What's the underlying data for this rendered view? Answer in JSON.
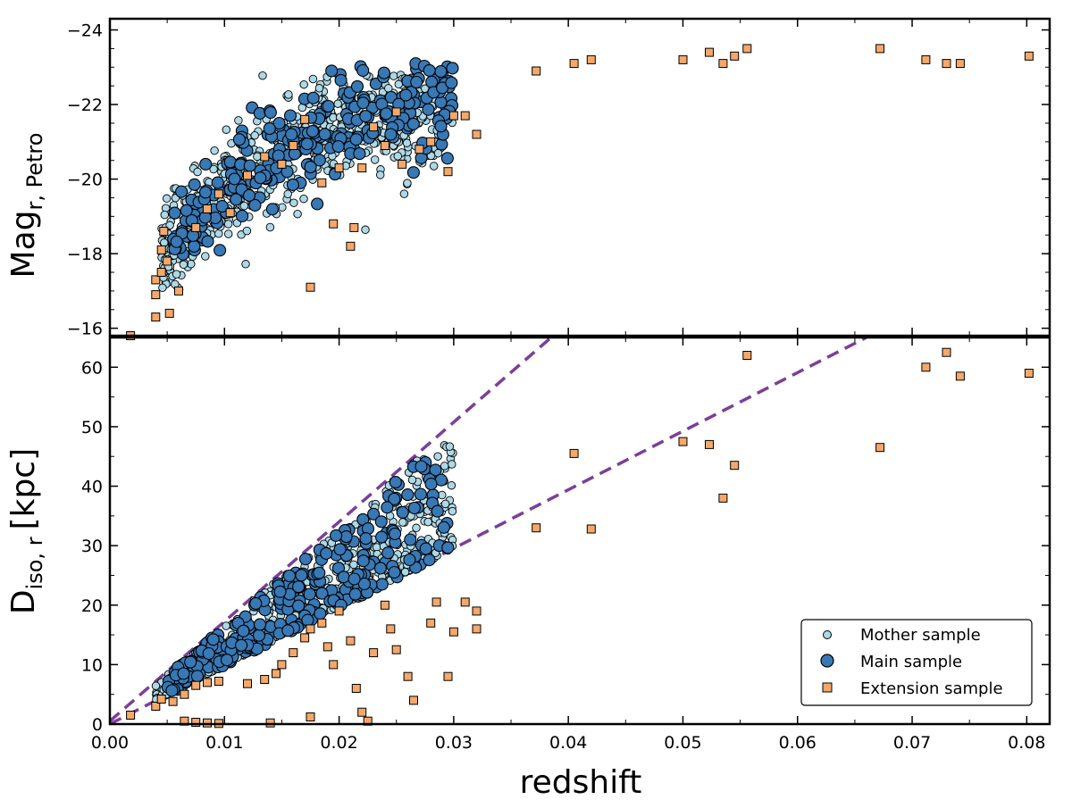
{
  "chart_data": [
    {
      "type": "scatter",
      "panel": "top",
      "ylabel_main": "Mag",
      "ylabel_sub": "r, Petro",
      "xlim": [
        0.0,
        0.082
      ],
      "ylim": [
        -15.8,
        -24.3
      ],
      "y_inverted": true,
      "yticks": [
        -24,
        -22,
        -20,
        -18,
        -16
      ],
      "ytick_labels": [
        "−24",
        "−22",
        "−20",
        "−18",
        "−16"
      ],
      "series": [
        {
          "name": "Extension sample",
          "points": [
            [
              0.0018,
              -15.8
            ],
            [
              0.004,
              -16.3
            ],
            [
              0.0052,
              -16.4
            ],
            [
              0.004,
              -16.9
            ],
            [
              0.004,
              -17.3
            ],
            [
              0.0045,
              -17.5
            ],
            [
              0.005,
              -17.8
            ],
            [
              0.006,
              -17.0
            ],
            [
              0.0045,
              -18.1
            ],
            [
              0.0047,
              -18.6
            ],
            [
              0.0075,
              -18.7
            ],
            [
              0.0085,
              -19.2
            ],
            [
              0.0095,
              -19.6
            ],
            [
              0.0105,
              -19.1
            ],
            [
              0.012,
              -20.1
            ],
            [
              0.0135,
              -20.6
            ],
            [
              0.015,
              -20.4
            ],
            [
              0.016,
              -20.9
            ],
            [
              0.017,
              -21.6
            ],
            [
              0.0175,
              -17.1
            ],
            [
              0.0185,
              -19.9
            ],
            [
              0.0195,
              -18.8
            ],
            [
              0.02,
              -20.3
            ],
            [
              0.021,
              -18.2
            ],
            [
              0.0213,
              -18.7
            ],
            [
              0.022,
              -20.3
            ],
            [
              0.023,
              -21.4
            ],
            [
              0.024,
              -20.9
            ],
            [
              0.025,
              -21.8
            ],
            [
              0.0255,
              -20.4
            ],
            [
              0.027,
              -20.8
            ],
            [
              0.028,
              -21.0
            ],
            [
              0.0295,
              -20.2
            ],
            [
              0.03,
              -21.7
            ],
            [
              0.031,
              -21.7
            ],
            [
              0.032,
              -21.2
            ],
            [
              0.0372,
              -22.9
            ],
            [
              0.0405,
              -23.1
            ],
            [
              0.042,
              -23.2
            ],
            [
              0.05,
              -23.2
            ],
            [
              0.0523,
              -23.4
            ],
            [
              0.0535,
              -23.1
            ],
            [
              0.0545,
              -23.3
            ],
            [
              0.0556,
              -23.5
            ],
            [
              0.0672,
              -23.5
            ],
            [
              0.0712,
              -23.2
            ],
            [
              0.073,
              -23.1
            ],
            [
              0.0742,
              -23.1
            ],
            [
              0.0802,
              -23.3
            ]
          ]
        }
      ]
    },
    {
      "type": "scatter",
      "panel": "bottom",
      "xlabel": "redshift",
      "ylabel_main": "D",
      "ylabel_sub": "iso, r",
      "ylabel_unit": "[kpc]",
      "xlim": [
        0.0,
        0.082
      ],
      "ylim": [
        0,
        65
      ],
      "xticks": [
        0.0,
        0.01,
        0.02,
        0.03,
        0.04,
        0.05,
        0.06,
        0.07,
        0.08
      ],
      "xtick_labels": [
        "0.00",
        "0.01",
        "0.02",
        "0.03",
        "0.04",
        "0.05",
        "0.06",
        "0.07",
        "0.08"
      ],
      "yticks": [
        0,
        10,
        20,
        30,
        40,
        50,
        60
      ],
      "ytick_labels": [
        "0",
        "10",
        "20",
        "30",
        "40",
        "50",
        "60"
      ],
      "reference_lines": [
        {
          "style": "dashed",
          "color": "#7b3f98",
          "points": [
            [
              0.0,
              0.5
            ],
            [
              0.0385,
              65
            ]
          ]
        },
        {
          "style": "dashed",
          "color": "#7b3f98",
          "points": [
            [
              0.0,
              0.0
            ],
            [
              0.066,
              65
            ]
          ]
        }
      ],
      "series": [
        {
          "name": "Extension sample",
          "points": [
            [
              0.0018,
              1.5
            ],
            [
              0.004,
              3.0
            ],
            [
              0.0045,
              4.2
            ],
            [
              0.0055,
              3.8
            ],
            [
              0.0065,
              5.0
            ],
            [
              0.0075,
              6.5
            ],
            [
              0.0085,
              7.0
            ],
            [
              0.0095,
              7.2
            ],
            [
              0.0065,
              0.5
            ],
            [
              0.0075,
              0.3
            ],
            [
              0.0085,
              0.2
            ],
            [
              0.0095,
              0.1
            ],
            [
              0.014,
              0.2
            ],
            [
              0.0175,
              1.2
            ],
            [
              0.012,
              6.8
            ],
            [
              0.0135,
              7.5
            ],
            [
              0.0145,
              8.5
            ],
            [
              0.015,
              10.0
            ],
            [
              0.016,
              12.0
            ],
            [
              0.017,
              14.5
            ],
            [
              0.0175,
              16.0
            ],
            [
              0.0185,
              17.0
            ],
            [
              0.019,
              13.0
            ],
            [
              0.0195,
              10.0
            ],
            [
              0.02,
              19.0
            ],
            [
              0.021,
              14.0
            ],
            [
              0.0215,
              6.0
            ],
            [
              0.022,
              2.0
            ],
            [
              0.0225,
              0.5
            ],
            [
              0.023,
              12.0
            ],
            [
              0.024,
              20.0
            ],
            [
              0.0245,
              16.0
            ],
            [
              0.025,
              12.5
            ],
            [
              0.026,
              8.0
            ],
            [
              0.0265,
              4.0
            ],
            [
              0.028,
              17.0
            ],
            [
              0.0285,
              20.5
            ],
            [
              0.0295,
              8.0
            ],
            [
              0.03,
              15.5
            ],
            [
              0.031,
              20.5
            ],
            [
              0.032,
              19.0
            ],
            [
              0.032,
              16.0
            ],
            [
              0.0372,
              33.0
            ],
            [
              0.0405,
              45.5
            ],
            [
              0.042,
              32.8
            ],
            [
              0.05,
              47.5
            ],
            [
              0.0523,
              47.0
            ],
            [
              0.0535,
              38.0
            ],
            [
              0.0545,
              43.5
            ],
            [
              0.0556,
              62.0
            ],
            [
              0.0672,
              46.5
            ],
            [
              0.0712,
              60.0
            ],
            [
              0.073,
              62.5
            ],
            [
              0.0742,
              58.5
            ],
            [
              0.0802,
              59.0
            ]
          ]
        }
      ]
    }
  ],
  "legend": {
    "placement": "lower-right",
    "entries": [
      {
        "label": "Mother sample",
        "marker": "small-circle",
        "color": "#add8e6"
      },
      {
        "label": "Main sample",
        "marker": "large-circle",
        "color": "#3778b5"
      },
      {
        "label": "Extension sample",
        "marker": "square",
        "color": "#f4a86a"
      }
    ]
  },
  "colors": {
    "mother": "#add8e6",
    "main": "#3778b5",
    "extension": "#f4a86a",
    "dashed_line": "#7b3f98",
    "edge": "#000000"
  }
}
